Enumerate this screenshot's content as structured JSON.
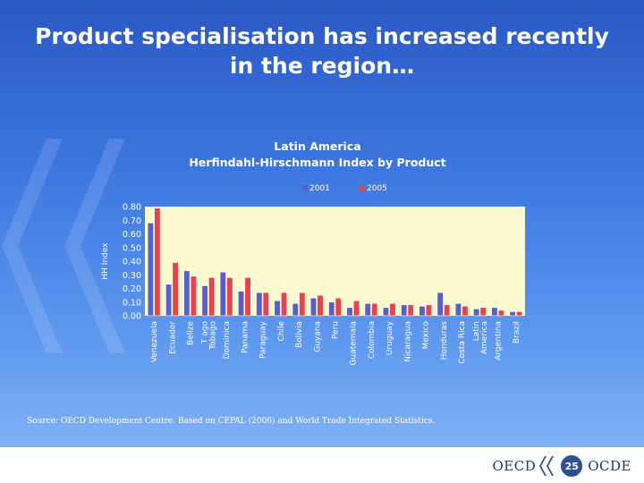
{
  "slide": {
    "title_line1": "Product specialisation has increased recently",
    "title_line2": "in the region…",
    "source": "Source: OECD Development Centre. Based on CEPAL (2006) and World Trade Integrated Statistics.",
    "page_number": "25",
    "logo_left": "OECD",
    "logo_right": "OCDE"
  },
  "colors": {
    "plot_bg": "#fbf9cf",
    "series_2001": "#5a5fc8",
    "series_2005": "#e8434a"
  },
  "chart_data": {
    "type": "bar",
    "title": "Latin America",
    "subtitle": "Herfindahl-Hirschmann Index by Product",
    "ylabel": "HH Index",
    "xlabel": "",
    "ylim": [
      0,
      0.8
    ],
    "yticks": [
      "0.00",
      "0.10",
      "0.20",
      "0.30",
      "0.40",
      "0.50",
      "0.60",
      "0.70",
      "0.80"
    ],
    "legend_position": "top",
    "grid": false,
    "categories": [
      "Venezuela",
      "Ecuador",
      "Belize",
      "T ago Tobago",
      "Dominica",
      "Panama",
      "Paraguay",
      "Chile",
      "Bolivia",
      "Guyana",
      "Peru",
      "Guatemala",
      "Colombia",
      "Uruguay",
      "Nicaragua",
      "Mexico",
      "Honduras",
      "Costa Rica",
      "Latin America",
      "Argentina",
      "Brazil"
    ],
    "category_lines": [
      [
        "Venezuela"
      ],
      [
        "Ecuador"
      ],
      [
        "Belize"
      ],
      [
        "T ago",
        "Tobago"
      ],
      [
        "Dominica"
      ],
      [
        "Panama"
      ],
      [
        "Paraguay"
      ],
      [
        "Chile"
      ],
      [
        "Bolivia"
      ],
      [
        "Guyana"
      ],
      [
        "Peru"
      ],
      [
        "Guatemala"
      ],
      [
        "Colombia"
      ],
      [
        "Uruguay"
      ],
      [
        "Nicaragua"
      ],
      [
        "Mexico"
      ],
      [
        "Honduras"
      ],
      [
        "Costa Rica"
      ],
      [
        "Latin",
        "America"
      ],
      [
        "Argentina"
      ],
      [
        "Brazil"
      ]
    ],
    "series": [
      {
        "name": "2001",
        "values": [
          0.68,
          0.23,
          0.33,
          0.22,
          0.32,
          0.18,
          0.17,
          0.11,
          0.09,
          0.13,
          0.1,
          0.06,
          0.09,
          0.06,
          0.08,
          0.07,
          0.17,
          0.09,
          0.05,
          0.06,
          0.03
        ]
      },
      {
        "name": "2005",
        "values": [
          0.79,
          0.39,
          0.29,
          0.28,
          0.28,
          0.28,
          0.17,
          0.17,
          0.17,
          0.15,
          0.13,
          0.11,
          0.09,
          0.09,
          0.08,
          0.08,
          0.08,
          0.07,
          0.06,
          0.04,
          0.03
        ]
      }
    ]
  }
}
